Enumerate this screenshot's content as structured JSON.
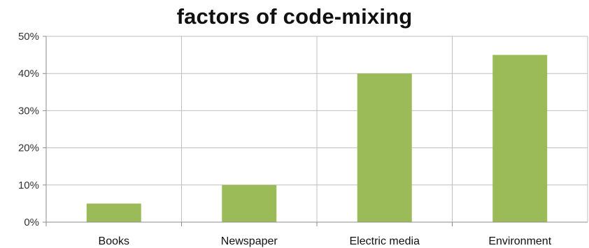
{
  "chart_data": {
    "type": "bar",
    "title": "factors of code-mixing",
    "xlabel": "",
    "ylabel": "",
    "categories": [
      "Books",
      "Newspaper",
      "Electric media",
      "Environment"
    ],
    "values": [
      5,
      10,
      40,
      45
    ],
    "ylim": [
      0,
      50
    ],
    "yticks": [
      "0%",
      "10%",
      "20%",
      "30%",
      "40%",
      "50%"
    ],
    "y_tick_values": [
      0,
      10,
      20,
      30,
      40,
      50
    ],
    "grid": true,
    "legend": "none",
    "bar_color": "#9bbb59",
    "grid_color": "#bfbfbf"
  }
}
